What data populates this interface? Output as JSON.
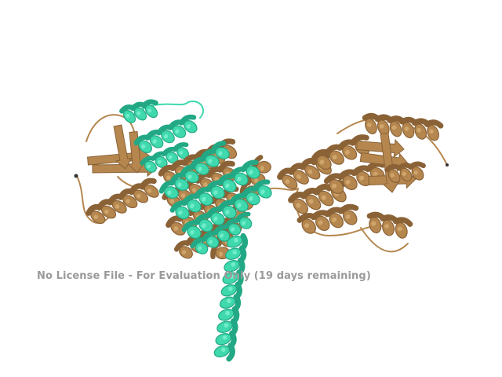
{
  "viewer": {
    "background": "#ffffff",
    "watermark": "No License File - For Evaluation Only (19 days remaining)"
  },
  "structure": {
    "chains": [
      {
        "id": "A",
        "color": "#b5874f",
        "shade": "#8a6236",
        "highlight": "#d7ac72"
      },
      {
        "id": "B",
        "color": "#3fd9ad",
        "shade": "#22a884",
        "highlight": "#7ff0cf"
      }
    ]
  }
}
